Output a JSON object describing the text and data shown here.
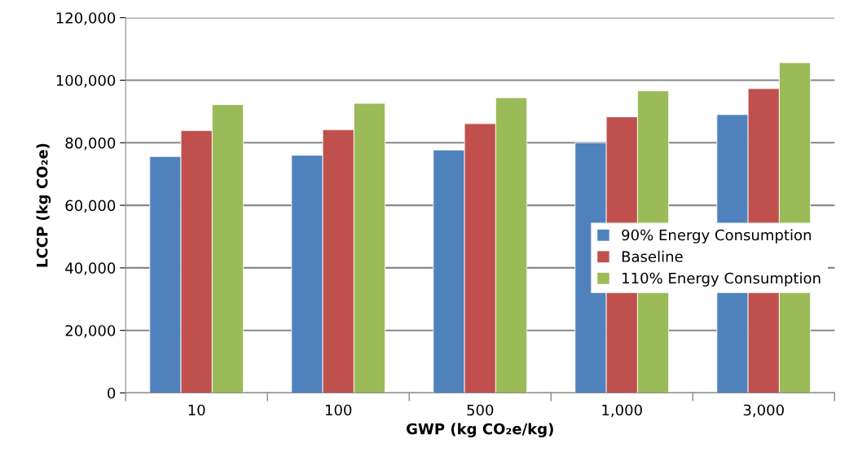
{
  "chart_data": {
    "type": "bar",
    "xlabel": "GWP (kg CO₂e/kg)",
    "ylabel": "LCCP (kg CO₂e)",
    "categories": [
      "10",
      "100",
      "500",
      "1,000",
      "3,000"
    ],
    "series": [
      {
        "name": "90% Energy Consumption",
        "color": "#4f81bd",
        "values": [
          75600,
          76000,
          77700,
          80000,
          89000
        ]
      },
      {
        "name": "Baseline",
        "color": "#c0504d",
        "values": [
          83900,
          84200,
          86100,
          88300,
          97300
        ]
      },
      {
        "name": "110% Energy Consumption",
        "color": "#9bbb59",
        "values": [
          92200,
          92600,
          94400,
          96600,
          105600
        ]
      }
    ],
    "ylim": [
      0,
      120000
    ],
    "yticks": [
      {
        "value": 0,
        "label": "0"
      },
      {
        "value": 20000,
        "label": "20,000"
      },
      {
        "value": 40000,
        "label": "40,000"
      },
      {
        "value": 60000,
        "label": "60,000"
      },
      {
        "value": 80000,
        "label": "80,000"
      },
      {
        "value": 100000,
        "label": "100,000"
      },
      {
        "value": 120000,
        "label": "120,000"
      }
    ],
    "grid": "y",
    "legend": "right"
  }
}
